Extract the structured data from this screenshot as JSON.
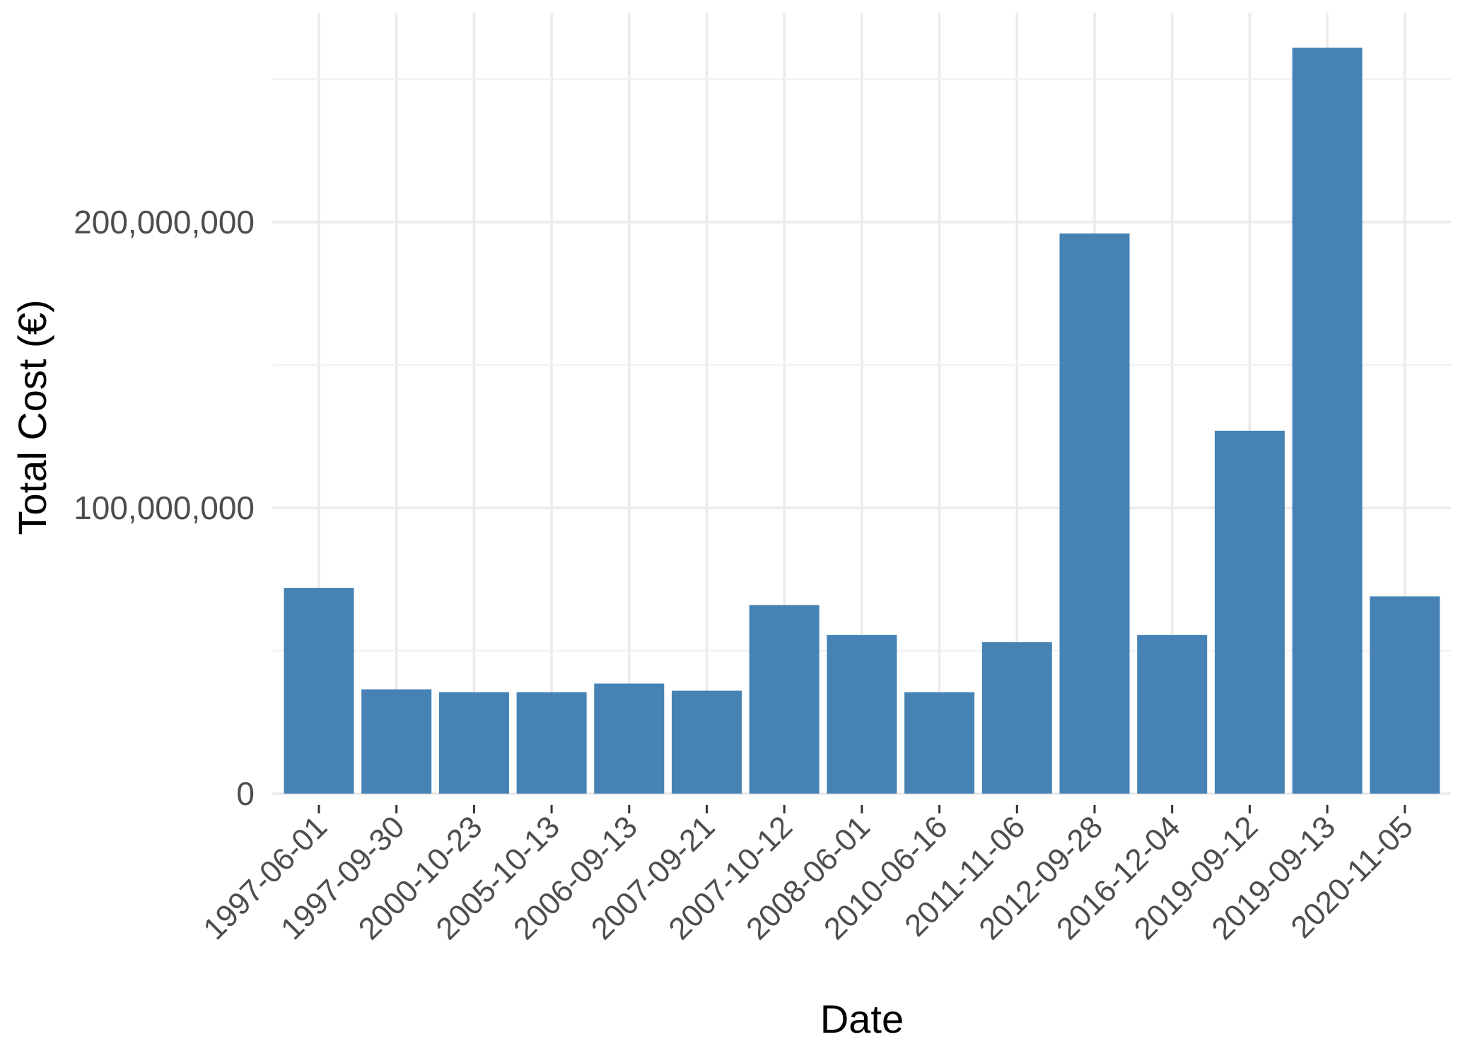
{
  "chart_data": {
    "type": "bar",
    "title": "",
    "xlabel": "Date",
    "ylabel": "Total Cost (€)",
    "categories": [
      "1997-06-01",
      "1997-09-30",
      "2000-10-23",
      "2005-10-13",
      "2006-09-13",
      "2007-09-21",
      "2007-10-12",
      "2008-06-01",
      "2010-06-16",
      "2011-11-06",
      "2012-09-28",
      "2016-12-04",
      "2019-09-12",
      "2019-09-13",
      "2020-11-05"
    ],
    "values": [
      72000000,
      36500000,
      35500000,
      35500000,
      38500000,
      36000000,
      66000000,
      55500000,
      35500000,
      53000000,
      196000000,
      55500000,
      127000000,
      261000000,
      69000000
    ],
    "ylim": [
      0,
      275000000
    ],
    "yticks": [
      0,
      100000000,
      200000000
    ],
    "ytick_labels": [
      "0",
      "100,000,000",
      "200,000,000"
    ],
    "grid": true,
    "bar_color": "#4682b4",
    "legend": "none"
  }
}
